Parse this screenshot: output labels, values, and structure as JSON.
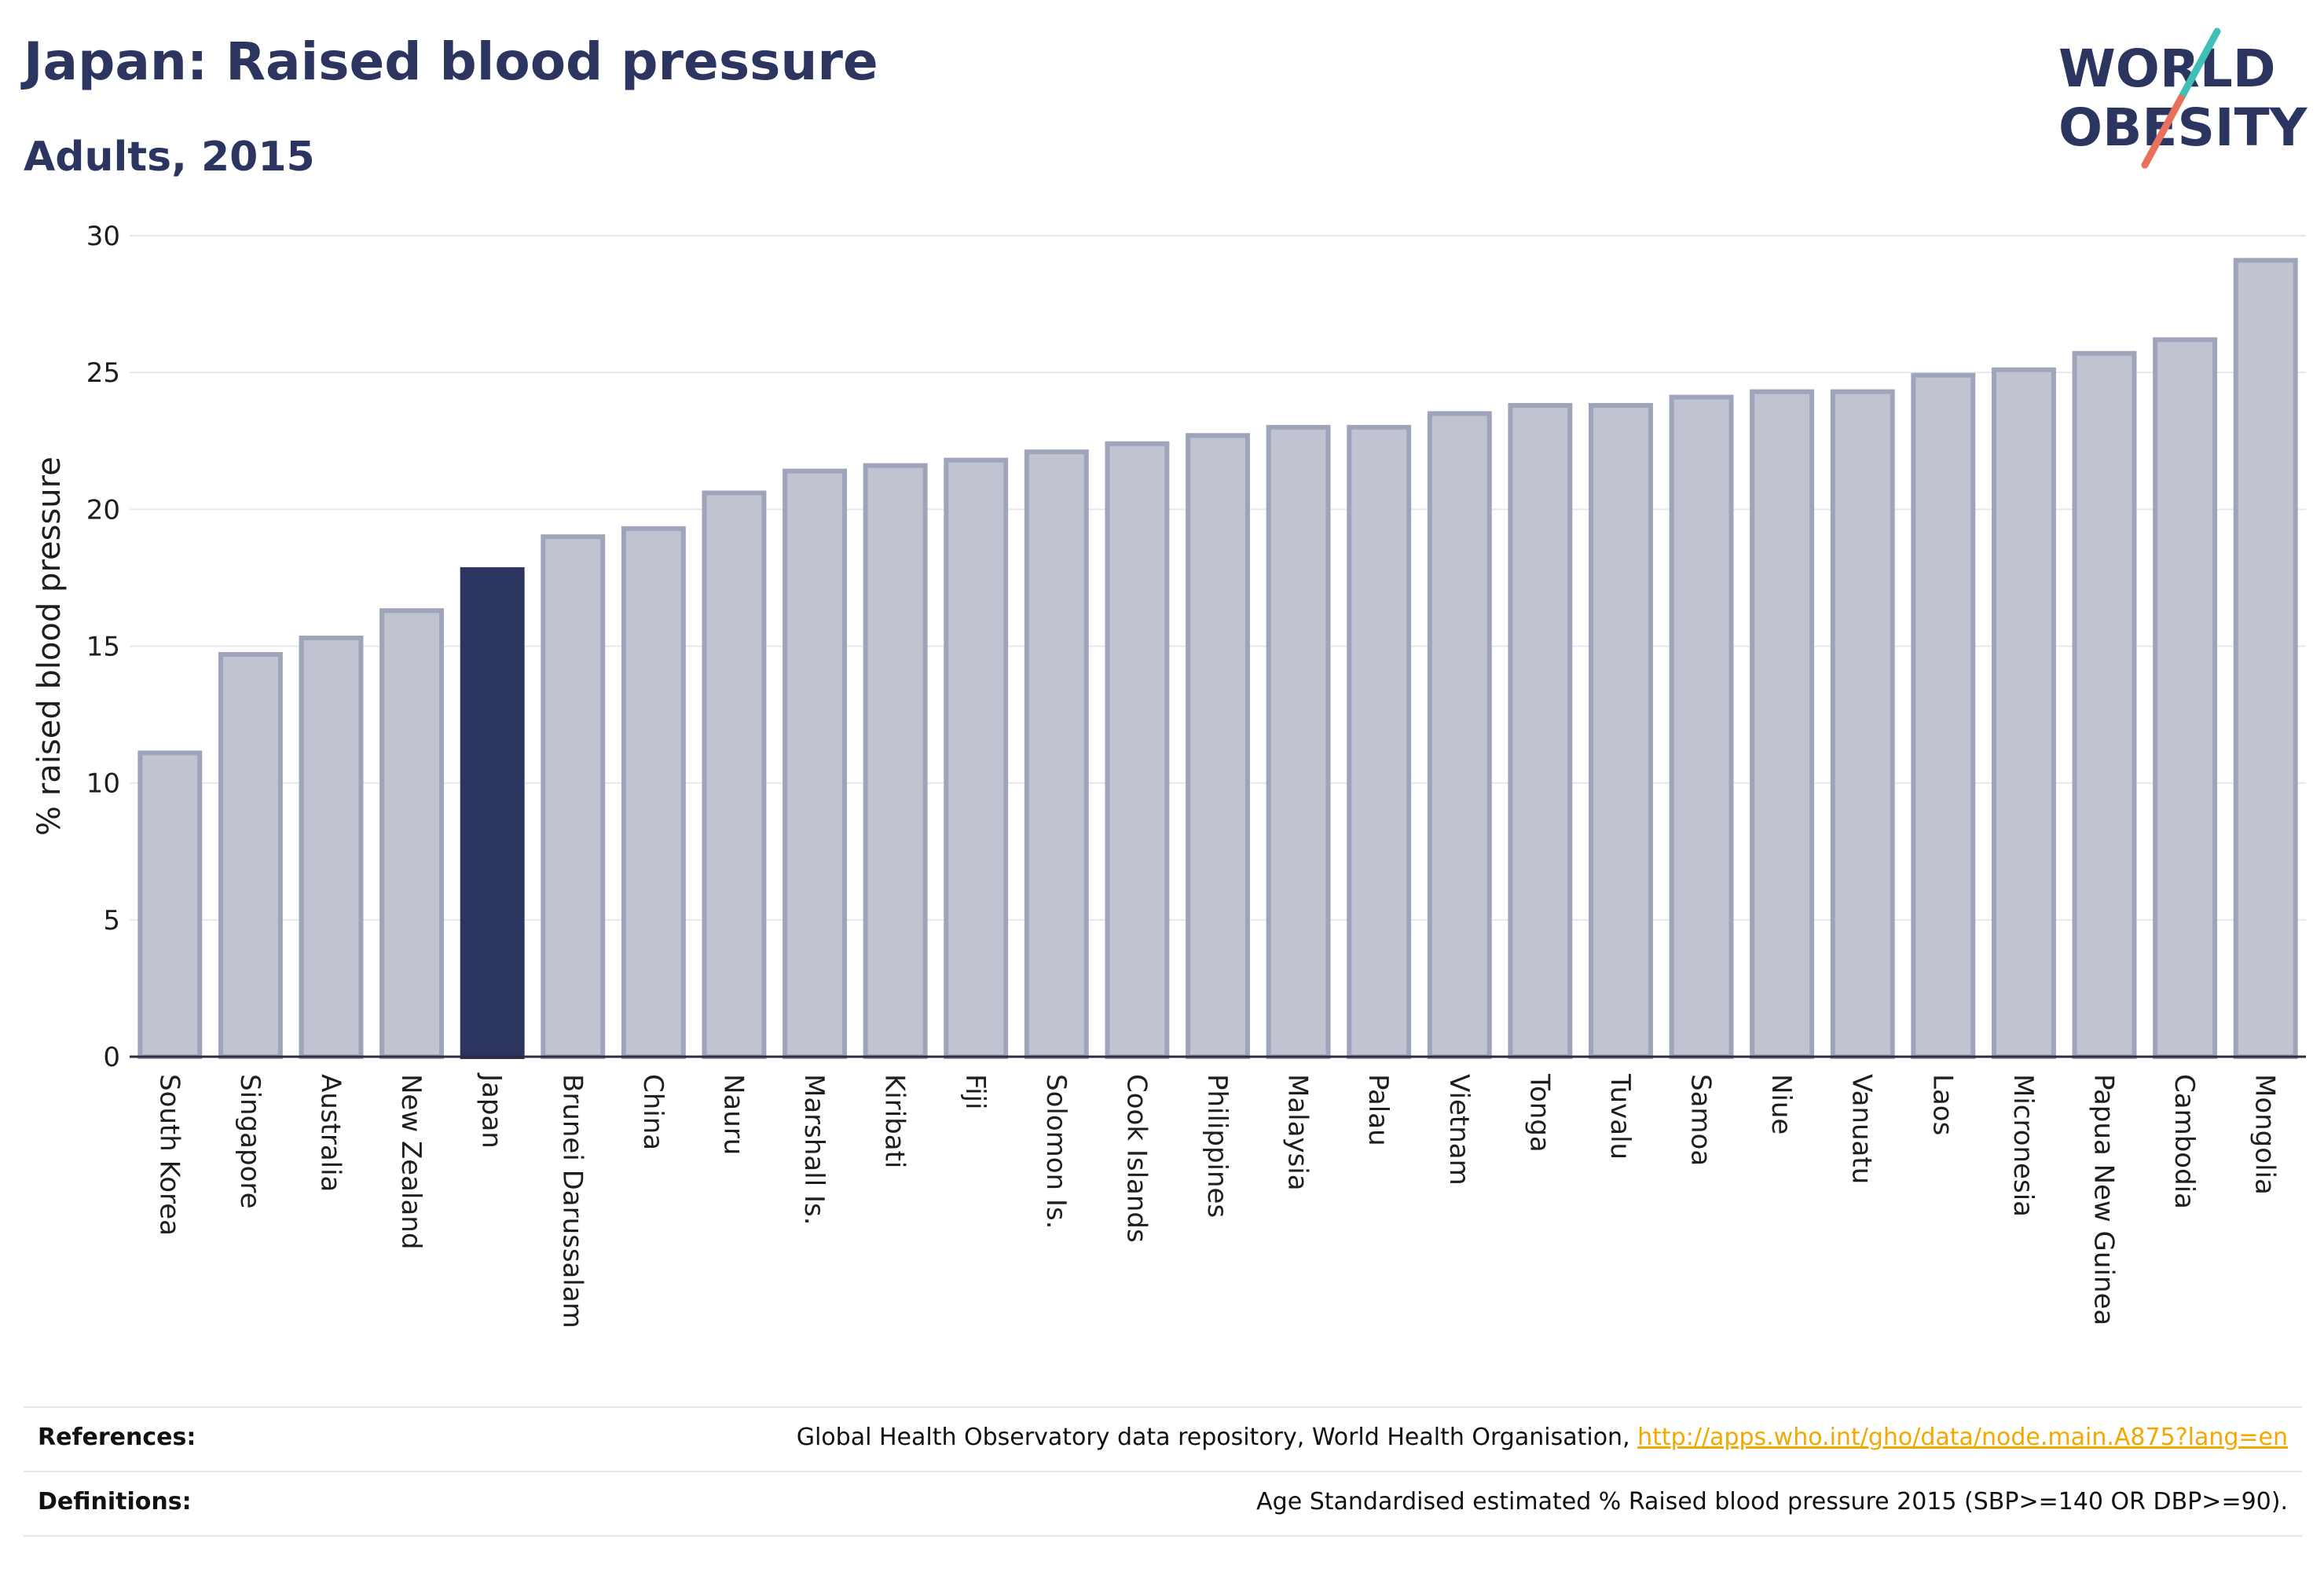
{
  "header": {
    "title": "Japan: Raised blood pressure",
    "subtitle": "Adults, 2015"
  },
  "logo": {
    "line1": "WORLD",
    "line2": "OBESITY",
    "colors": {
      "text": "#2c3560",
      "slash_top": "#3fbfb5",
      "slash_bottom": "#e8705d"
    }
  },
  "colors": {
    "highlight_bar": "#2c3560",
    "bar_fill": "#c0c3d0",
    "bar_stroke": "#9ea4ba",
    "grid": "#e7e8ee",
    "axis": "#2c2c3c"
  },
  "chart_data": {
    "type": "bar",
    "title": "Japan: Raised blood pressure",
    "subtitle": "Adults, 2015",
    "xlabel": "",
    "ylabel": "% raised blood pressure",
    "ylim": [
      0,
      30
    ],
    "yticks": [
      0,
      5,
      10,
      15,
      20,
      25,
      30
    ],
    "grid": true,
    "highlight": "Japan",
    "categories": [
      "South Korea",
      "Singapore",
      "Australia",
      "New Zealand",
      "Japan",
      "Brunei Darussalam",
      "China",
      "Nauru",
      "Marshall Is.",
      "Kiribati",
      "Fiji",
      "Solomon Is.",
      "Cook Islands",
      "Philippines",
      "Malaysia",
      "Palau",
      "Vietnam",
      "Tonga",
      "Tuvalu",
      "Samoa",
      "Niue",
      "Vanuatu",
      "Laos",
      "Micronesia",
      "Papua New Guinea",
      "Cambodia",
      "Mongolia"
    ],
    "values": [
      11.1,
      14.7,
      15.3,
      16.3,
      17.8,
      19.0,
      19.3,
      20.6,
      21.4,
      21.6,
      21.8,
      22.1,
      22.4,
      22.7,
      23.0,
      23.0,
      23.5,
      23.8,
      23.8,
      24.1,
      24.3,
      24.3,
      24.9,
      25.1,
      25.7,
      26.2,
      29.1
    ]
  },
  "footer": {
    "references_label": "References:",
    "references_text": "Global Health Observatory data repository, World Health Organisation, ",
    "references_link": "http://apps.who.int/gho/data/node.main.A875?lang=en",
    "definitions_label": "Definitions:",
    "definitions_text": "Age Standardised estimated % Raised blood pressure 2015 (SBP>=140 OR DBP>=90)."
  }
}
